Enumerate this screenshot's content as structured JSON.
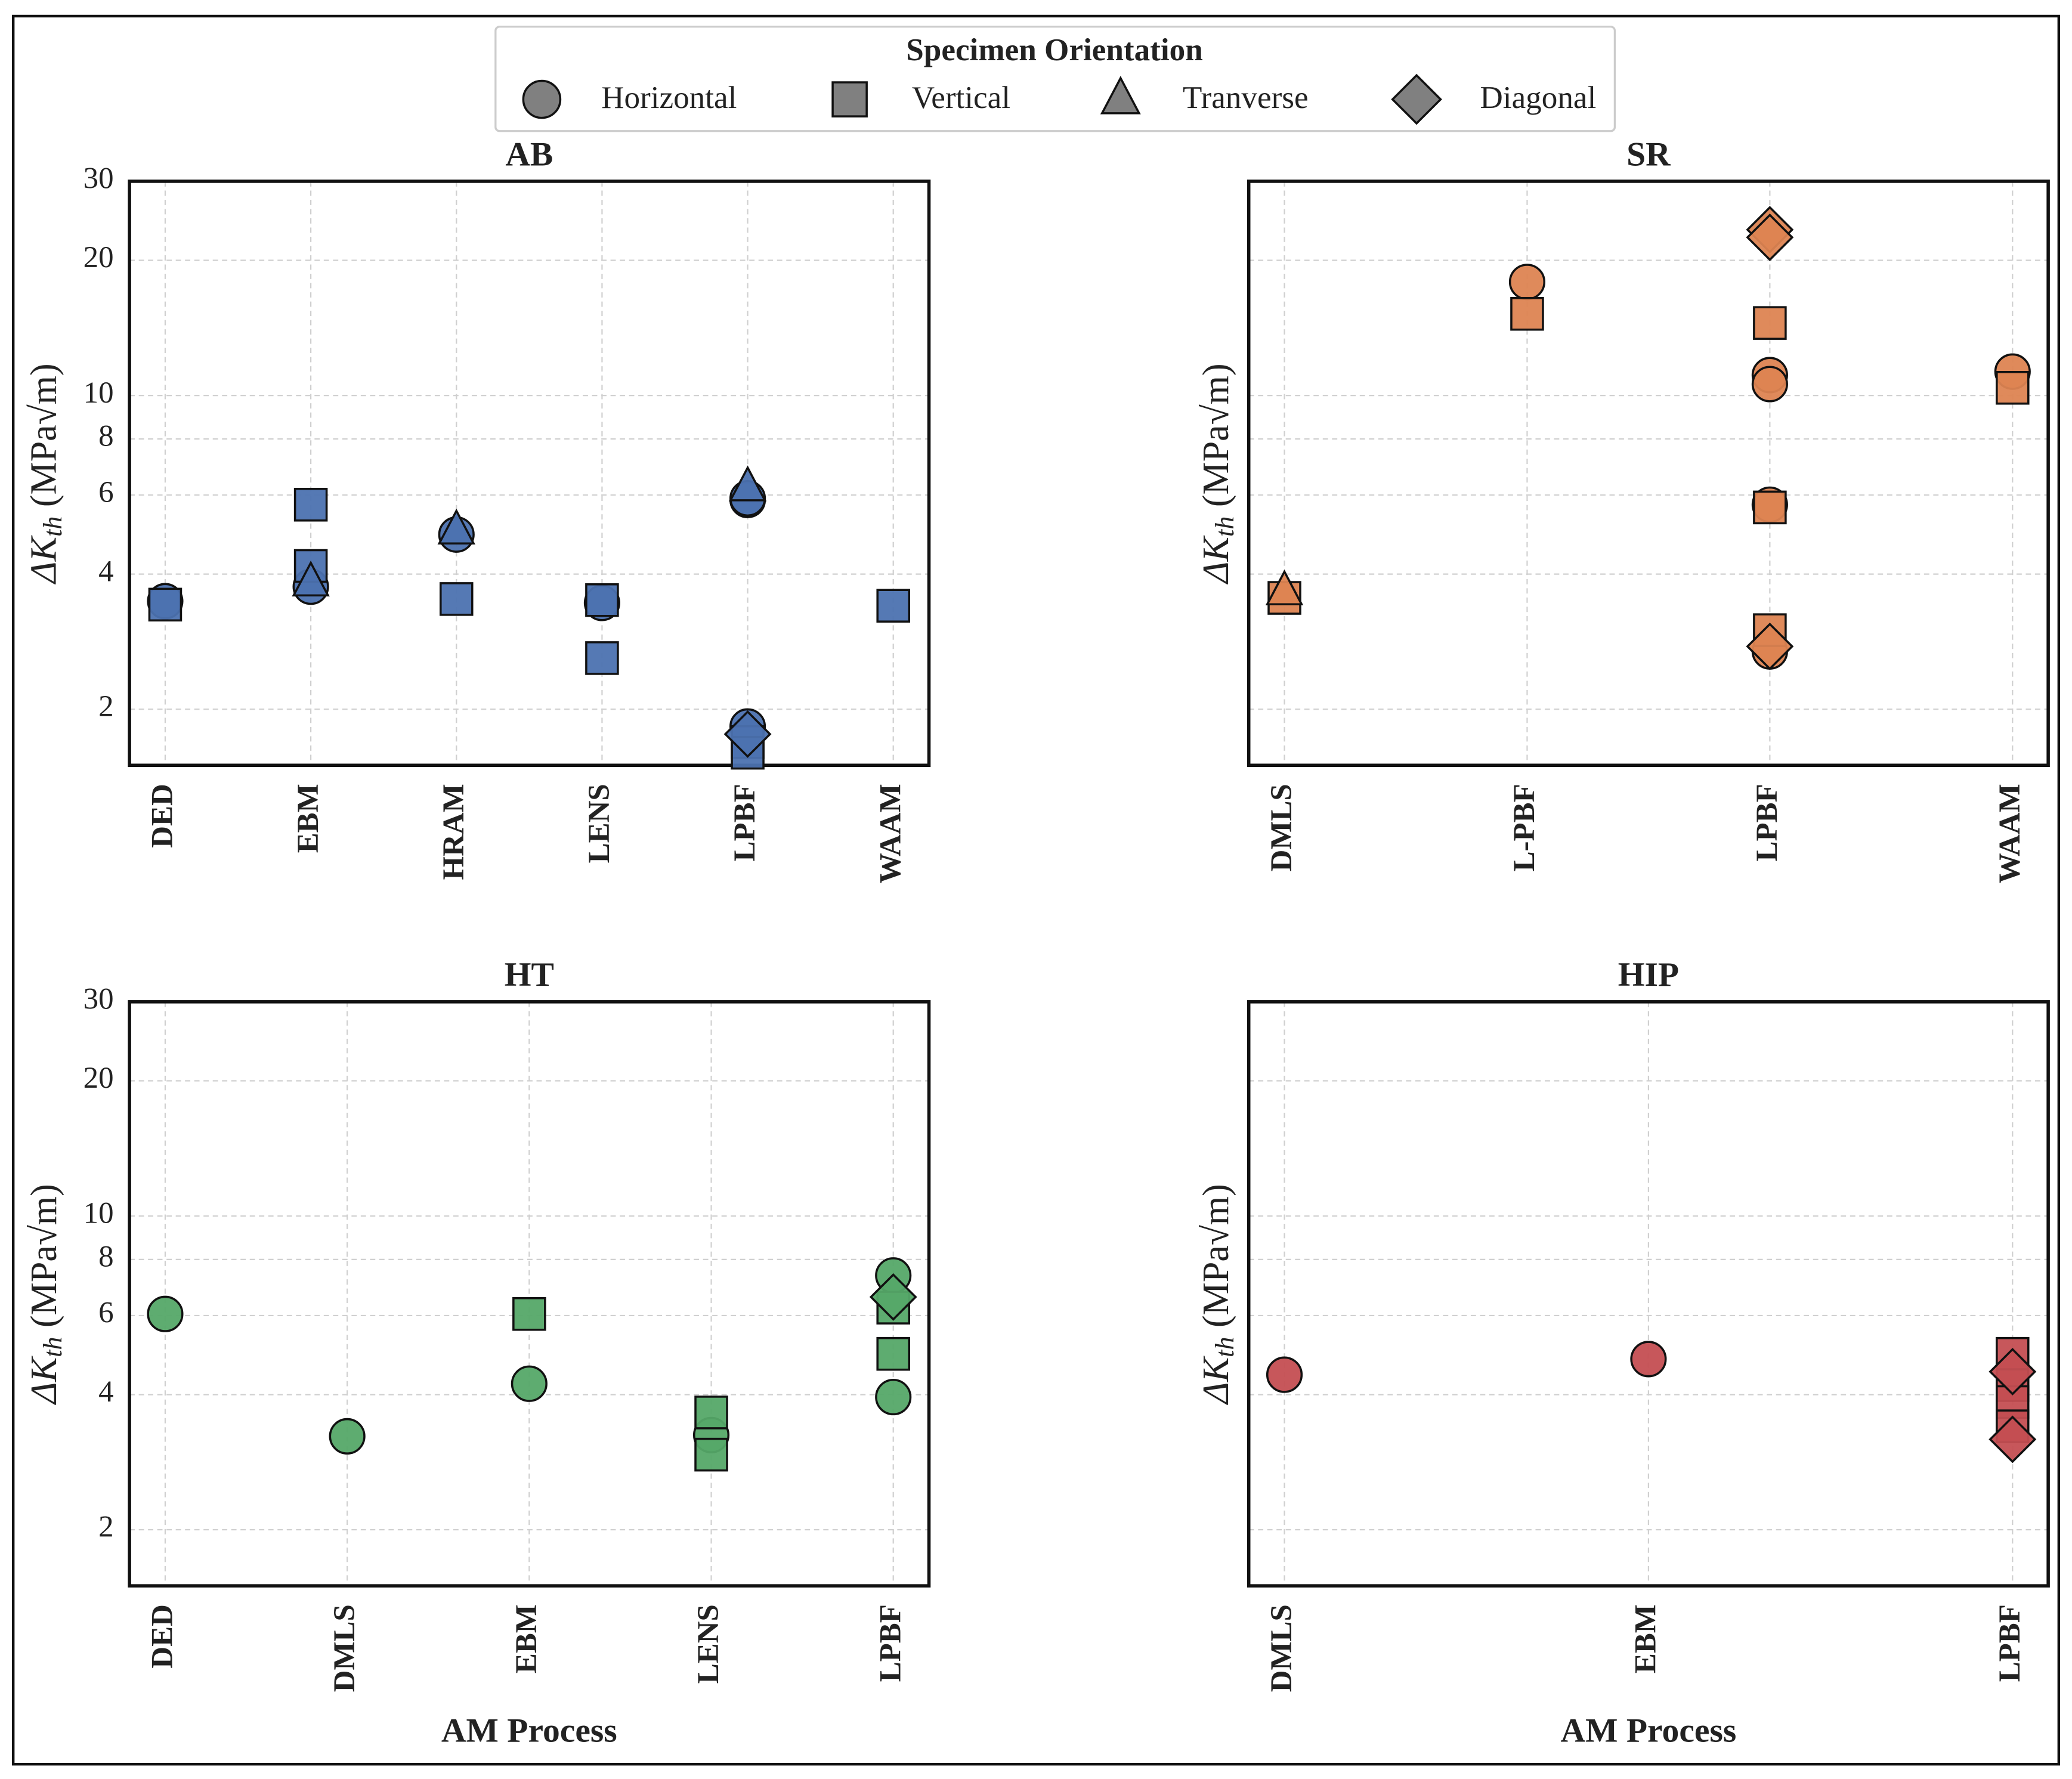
{
  "legend": {
    "title": "Specimen Orientation",
    "entries": [
      "Horizontal",
      "Vertical",
      "Tranverse",
      "Diagonal"
    ],
    "markers": [
      "circle",
      "square",
      "triangle",
      "diamond"
    ],
    "color": "#808080"
  },
  "chart_data": [
    {
      "type": "scatter",
      "title": "AB",
      "color": "#4c72b0",
      "log_y": true,
      "grid": true,
      "ytick_labels": true,
      "ylabel": {
        "symbol": "ΔK",
        "subscript": "th",
        "unit": " (MPa√m)"
      },
      "categories": [
        "DED",
        "EBM",
        "HRAM",
        "LENS",
        "LPBF",
        "WAAM"
      ],
      "ylim": [
        1.5,
        30
      ],
      "yticks": [
        2,
        4,
        6,
        8,
        10,
        20,
        30
      ],
      "series": [
        {
          "marker": "circle",
          "x": [
            "DED",
            "EBM",
            "HRAM",
            "LENS",
            "LPBF",
            "LPBF",
            "LPBF"
          ],
          "values": [
            3.48,
            3.75,
            4.9,
            3.45,
            5.85,
            5.9,
            1.83
          ]
        },
        {
          "marker": "square",
          "x": [
            "DED",
            "EBM",
            "EBM",
            "HRAM",
            "LENS",
            "LENS",
            "LPBF",
            "LPBF",
            "WAAM"
          ],
          "values": [
            3.42,
            5.71,
            4.17,
            3.52,
            3.5,
            2.6,
            1.69,
            1.6,
            3.4
          ]
        },
        {
          "marker": "triangle",
          "x": [
            "EBM",
            "HRAM",
            "LPBF"
          ],
          "values": [
            3.83,
            5.0,
            6.24
          ]
        },
        {
          "marker": "diamond",
          "x": [
            "LPBF"
          ],
          "values": [
            1.76
          ]
        }
      ]
    },
    {
      "type": "scatter",
      "title": "SR",
      "color": "#dd8452",
      "log_y": true,
      "grid": true,
      "ytick_labels": false,
      "ylabel": {
        "symbol": "ΔK",
        "subscript": "th",
        "unit": " (MPa√m)"
      },
      "categories": [
        "DMLS",
        "L-PBF",
        "LPBF",
        "WAAM"
      ],
      "ylim": [
        1.5,
        30
      ],
      "yticks": [
        2,
        4,
        6,
        8,
        10,
        20,
        30
      ],
      "series": [
        {
          "marker": "circle",
          "x": [
            "L-PBF",
            "LPBF",
            "LPBF",
            "LPBF",
            "LPBF",
            "WAAM"
          ],
          "values": [
            17.9,
            11.1,
            10.6,
            5.71,
            2.69,
            11.3
          ]
        },
        {
          "marker": "square",
          "x": [
            "DMLS",
            "L-PBF",
            "LPBF",
            "LPBF",
            "LPBF",
            "WAAM"
          ],
          "values": [
            3.54,
            15.2,
            14.5,
            5.63,
            3.0,
            10.4
          ]
        },
        {
          "marker": "triangle",
          "x": [
            "DMLS"
          ],
          "values": [
            3.66
          ]
        },
        {
          "marker": "diamond",
          "x": [
            "LPBF",
            "LPBF",
            "LPBF"
          ],
          "values": [
            23.4,
            22.5,
            2.76
          ]
        }
      ]
    },
    {
      "type": "scatter",
      "title": "HT",
      "color": "#55a868",
      "log_y": true,
      "grid": true,
      "ytick_labels": true,
      "ylabel": {
        "symbol": "ΔK",
        "subscript": "th",
        "unit": " (MPa√m)"
      },
      "xlabel": "AM Process",
      "categories": [
        "DED",
        "DMLS",
        "EBM",
        "LENS",
        "LPBF"
      ],
      "ylim": [
        1.5,
        30
      ],
      "yticks": [
        2,
        4,
        6,
        8,
        10,
        20,
        30
      ],
      "series": [
        {
          "marker": "circle",
          "x": [
            "DED",
            "DMLS",
            "EBM",
            "LENS",
            "LPBF",
            "LPBF"
          ],
          "values": [
            6.05,
            3.23,
            4.23,
            3.25,
            7.37,
            3.95
          ]
        },
        {
          "marker": "square",
          "x": [
            "EBM",
            "LENS",
            "LENS",
            "LPBF",
            "LPBF"
          ],
          "values": [
            6.05,
            3.65,
            2.94,
            6.25,
            4.93
          ]
        },
        {
          "marker": "diamond",
          "x": [
            "LPBF"
          ],
          "values": [
            6.6
          ]
        }
      ]
    },
    {
      "type": "scatter",
      "title": "HIP",
      "color": "#c44e52",
      "log_y": true,
      "grid": true,
      "ytick_labels": false,
      "ylabel": {
        "symbol": "ΔK",
        "subscript": "th",
        "unit": " (MPa√m)"
      },
      "xlabel": "AM Process",
      "categories": [
        "DMLS",
        "EBM",
        "LPBF"
      ],
      "ylim": [
        1.5,
        30
      ],
      "yticks": [
        2,
        4,
        6,
        8,
        10,
        20,
        30
      ],
      "series": [
        {
          "marker": "circle",
          "x": [
            "DMLS",
            "EBM"
          ],
          "values": [
            4.43,
            4.8
          ]
        },
        {
          "marker": "square",
          "x": [
            "LPBF",
            "LPBF",
            "LPBF",
            "LPBF"
          ],
          "values": [
            4.93,
            4.2,
            3.85,
            3.4
          ]
        },
        {
          "marker": "diamond",
          "x": [
            "LPBF",
            "LPBF"
          ],
          "values": [
            4.5,
            3.18
          ]
        }
      ]
    }
  ]
}
